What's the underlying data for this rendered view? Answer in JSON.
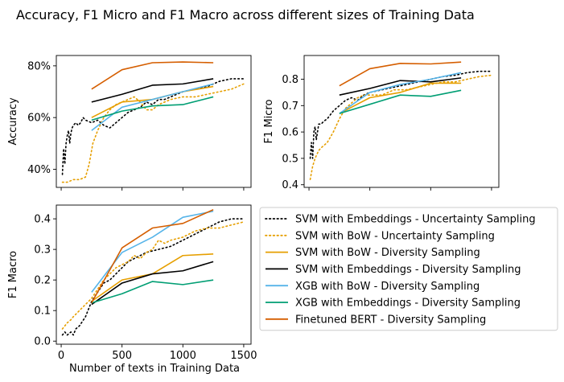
{
  "figure": {
    "title": "Accuracy, F1 Micro and F1 Macro across different sizes of Training Data"
  },
  "series_styles": [
    {
      "name": "SVM with Embeddings - Uncertainty Sampling",
      "color": "#000000",
      "dash": "dotted"
    },
    {
      "name": "SVM with BoW - Uncertainty Sampling",
      "color": "#e69f00",
      "dash": "dotted"
    },
    {
      "name": "SVM with BoW - Diversity Sampling",
      "color": "#e69f00",
      "dash": "solid"
    },
    {
      "name": "SVM with Embeddings - Diversity Sampling",
      "color": "#000000",
      "dash": "solid"
    },
    {
      "name": "XGB with BoW - Diversity Sampling",
      "color": "#56b4e9",
      "dash": "solid"
    },
    {
      "name": "XGB with Embeddings - Diversity Sampling",
      "color": "#009e73",
      "dash": "solid"
    },
    {
      "name": "Finetuned BERT - Diversity Sampling",
      "color": "#d55e00",
      "dash": "solid"
    }
  ],
  "chart_data": [
    {
      "type": "line",
      "panel": "top-left",
      "title": "",
      "xlabel": "",
      "ylabel": "Accuracy",
      "xlim": [
        -40,
        1560
      ],
      "ylim": [
        0.33,
        0.84
      ],
      "xticks": [
        0,
        500,
        1000,
        1500
      ],
      "xtick_labels": [
        "",
        "",
        "",
        ""
      ],
      "yticks": [
        0.4,
        0.6,
        0.8
      ],
      "ytick_labels": [
        "40%",
        "60%",
        "80%"
      ],
      "series": [
        {
          "name": "SVM with Embeddings - Uncertainty Sampling",
          "x": [
            10,
            20,
            30,
            40,
            50,
            60,
            70,
            80,
            90,
            100,
            120,
            140,
            160,
            180,
            200,
            250,
            300,
            350,
            400,
            450,
            500,
            550,
            600,
            650,
            700,
            750,
            800,
            850,
            900,
            950,
            1000,
            1100,
            1200,
            1300,
            1400,
            1500
          ],
          "y": [
            0.38,
            0.48,
            0.42,
            0.5,
            0.53,
            0.55,
            0.5,
            0.54,
            0.56,
            0.57,
            0.58,
            0.57,
            0.58,
            0.6,
            0.59,
            0.58,
            0.59,
            0.57,
            0.56,
            0.58,
            0.6,
            0.62,
            0.63,
            0.64,
            0.66,
            0.65,
            0.67,
            0.67,
            0.68,
            0.69,
            0.7,
            0.71,
            0.72,
            0.74,
            0.75,
            0.75
          ]
        },
        {
          "name": "SVM with BoW - Uncertainty Sampling",
          "x": [
            10,
            50,
            100,
            150,
            200,
            230,
            260,
            300,
            350,
            400,
            450,
            500,
            550,
            600,
            650,
            700,
            750,
            800,
            900,
            1000,
            1100,
            1200,
            1300,
            1400,
            1500
          ],
          "y": [
            0.35,
            0.35,
            0.36,
            0.36,
            0.37,
            0.42,
            0.5,
            0.55,
            0.6,
            0.63,
            0.65,
            0.66,
            0.67,
            0.68,
            0.66,
            0.63,
            0.63,
            0.65,
            0.67,
            0.68,
            0.68,
            0.69,
            0.7,
            0.71,
            0.73
          ]
        },
        {
          "name": "SVM with BoW - Diversity Sampling",
          "x": [
            250,
            500,
            750,
            1000,
            1250
          ],
          "y": [
            0.6,
            0.66,
            0.67,
            0.7,
            0.72
          ]
        },
        {
          "name": "SVM with Embeddings - Diversity Sampling",
          "x": [
            250,
            500,
            750,
            1000,
            1250
          ],
          "y": [
            0.66,
            0.69,
            0.725,
            0.73,
            0.75
          ]
        },
        {
          "name": "XGB with BoW - Diversity Sampling",
          "x": [
            250,
            500,
            750,
            1000,
            1250
          ],
          "y": [
            0.55,
            0.64,
            0.67,
            0.7,
            0.73
          ]
        },
        {
          "name": "XGB with Embeddings - Diversity Sampling",
          "x": [
            250,
            500,
            750,
            1000,
            1250
          ],
          "y": [
            0.59,
            0.625,
            0.645,
            0.65,
            0.68
          ]
        },
        {
          "name": "Finetuned BERT - Diversity Sampling",
          "x": [
            250,
            500,
            750,
            1000,
            1250
          ],
          "y": [
            0.71,
            0.785,
            0.812,
            0.815,
            0.812
          ]
        }
      ]
    },
    {
      "type": "line",
      "panel": "top-right",
      "title": "",
      "xlabel": "",
      "ylabel": "F1 Micro",
      "xlim": [
        -40,
        1560
      ],
      "ylim": [
        0.39,
        0.89
      ],
      "xticks": [
        0,
        500,
        1000,
        1500
      ],
      "xtick_labels": [
        "",
        "",
        "",
        ""
      ],
      "yticks": [
        0.4,
        0.5,
        0.6,
        0.7,
        0.8
      ],
      "ytick_labels": [
        "0.4",
        "0.5",
        "0.6",
        "0.7",
        "0.8"
      ],
      "series": [
        {
          "name": "SVM with Embeddings - Uncertainty Sampling",
          "x": [
            10,
            20,
            30,
            40,
            50,
            60,
            80,
            100,
            120,
            150,
            200,
            250,
            300,
            350,
            400,
            450,
            500,
            600,
            700,
            800,
            900,
            1000,
            1100,
            1200,
            1300,
            1400,
            1500
          ],
          "y": [
            0.5,
            0.56,
            0.5,
            0.6,
            0.62,
            0.57,
            0.63,
            0.63,
            0.64,
            0.65,
            0.68,
            0.7,
            0.72,
            0.73,
            0.72,
            0.74,
            0.75,
            0.76,
            0.77,
            0.78,
            0.79,
            0.8,
            0.81,
            0.815,
            0.825,
            0.83,
            0.83
          ]
        },
        {
          "name": "SVM with BoW - Uncertainty Sampling",
          "x": [
            10,
            30,
            50,
            80,
            100,
            150,
            200,
            250,
            300,
            350,
            400,
            450,
            500,
            600,
            700,
            800,
            900,
            1000,
            1100,
            1200,
            1300,
            1400,
            1500
          ],
          "y": [
            0.42,
            0.47,
            0.5,
            0.53,
            0.54,
            0.56,
            0.6,
            0.65,
            0.69,
            0.71,
            0.73,
            0.74,
            0.74,
            0.74,
            0.76,
            0.76,
            0.77,
            0.78,
            0.79,
            0.79,
            0.8,
            0.81,
            0.815
          ]
        },
        {
          "name": "SVM with BoW - Diversity Sampling",
          "x": [
            250,
            500,
            750,
            1000,
            1250
          ],
          "y": [
            0.67,
            0.73,
            0.75,
            0.785,
            0.785
          ]
        },
        {
          "name": "SVM with Embeddings - Diversity Sampling",
          "x": [
            250,
            500,
            750,
            1000,
            1250
          ],
          "y": [
            0.74,
            0.765,
            0.795,
            0.79,
            0.805
          ]
        },
        {
          "name": "XGB with BoW - Diversity Sampling",
          "x": [
            250,
            500,
            750,
            1000,
            1250
          ],
          "y": [
            0.67,
            0.75,
            0.78,
            0.8,
            0.825
          ]
        },
        {
          "name": "XGB with Embeddings - Diversity Sampling",
          "x": [
            250,
            500,
            750,
            1000,
            1250
          ],
          "y": [
            0.67,
            0.705,
            0.74,
            0.735,
            0.758
          ]
        },
        {
          "name": "Finetuned BERT - Diversity Sampling",
          "x": [
            250,
            500,
            750,
            1000,
            1250
          ],
          "y": [
            0.775,
            0.84,
            0.86,
            0.858,
            0.865
          ]
        }
      ]
    },
    {
      "type": "line",
      "panel": "bottom-left",
      "title": "",
      "xlabel": "Number of texts in Training Data",
      "ylabel": "F1 Macro",
      "xlim": [
        -40,
        1560
      ],
      "ylim": [
        -0.01,
        0.445
      ],
      "xticks": [
        0,
        500,
        1000,
        1500
      ],
      "xtick_labels": [
        "0",
        "500",
        "1000",
        "1500"
      ],
      "yticks": [
        0.0,
        0.1,
        0.2,
        0.3,
        0.4
      ],
      "ytick_labels": [
        "0.0",
        "0.1",
        "0.2",
        "0.3",
        "0.4"
      ],
      "series": [
        {
          "name": "SVM with Embeddings - Uncertainty Sampling",
          "x": [
            10,
            30,
            50,
            80,
            100,
            120,
            150,
            200,
            250,
            300,
            350,
            400,
            450,
            500,
            550,
            600,
            650,
            700,
            800,
            900,
            1000,
            1100,
            1200,
            1300,
            1400,
            1500
          ],
          "y": [
            0.02,
            0.03,
            0.02,
            0.03,
            0.02,
            0.04,
            0.05,
            0.08,
            0.13,
            0.16,
            0.19,
            0.2,
            0.22,
            0.24,
            0.26,
            0.27,
            0.28,
            0.29,
            0.3,
            0.31,
            0.33,
            0.35,
            0.37,
            0.39,
            0.4,
            0.4
          ]
        },
        {
          "name": "SVM with BoW - Uncertainty Sampling",
          "x": [
            10,
            30,
            50,
            80,
            100,
            150,
            200,
            250,
            300,
            350,
            400,
            450,
            500,
            550,
            600,
            650,
            700,
            750,
            800,
            850,
            900,
            1000,
            1100,
            1200,
            1300,
            1400,
            1500
          ],
          "y": [
            0.04,
            0.05,
            0.06,
            0.07,
            0.08,
            0.1,
            0.12,
            0.14,
            0.17,
            0.2,
            0.22,
            0.24,
            0.25,
            0.26,
            0.28,
            0.27,
            0.29,
            0.3,
            0.33,
            0.32,
            0.33,
            0.34,
            0.36,
            0.37,
            0.37,
            0.38,
            0.39
          ]
        },
        {
          "name": "SVM with BoW - Diversity Sampling",
          "x": [
            250,
            500,
            750,
            1000,
            1250
          ],
          "y": [
            0.13,
            0.2,
            0.22,
            0.28,
            0.285
          ]
        },
        {
          "name": "SVM with Embeddings - Diversity Sampling",
          "x": [
            250,
            500,
            750,
            1000,
            1250
          ],
          "y": [
            0.12,
            0.19,
            0.22,
            0.23,
            0.26
          ]
        },
        {
          "name": "XGB with BoW - Diversity Sampling",
          "x": [
            250,
            500,
            750,
            1000,
            1250
          ],
          "y": [
            0.16,
            0.29,
            0.34,
            0.405,
            0.425
          ]
        },
        {
          "name": "XGB with Embeddings - Diversity Sampling",
          "x": [
            250,
            500,
            750,
            1000,
            1250
          ],
          "y": [
            0.125,
            0.155,
            0.195,
            0.185,
            0.2
          ]
        },
        {
          "name": "Finetuned BERT - Diversity Sampling",
          "x": [
            250,
            500,
            750,
            1000,
            1250
          ],
          "y": [
            0.125,
            0.305,
            0.37,
            0.385,
            0.43
          ]
        }
      ]
    }
  ],
  "legend": {
    "placement": "lower-right",
    "entries": [
      "SVM with Embeddings - Uncertainty Sampling",
      "SVM with BoW - Uncertainty Sampling",
      "SVM with BoW - Diversity Sampling",
      "SVM with Embeddings - Diversity Sampling",
      "XGB with BoW - Diversity Sampling",
      "XGB with Embeddings - Diversity Sampling",
      "Finetuned BERT - Diversity Sampling"
    ]
  }
}
